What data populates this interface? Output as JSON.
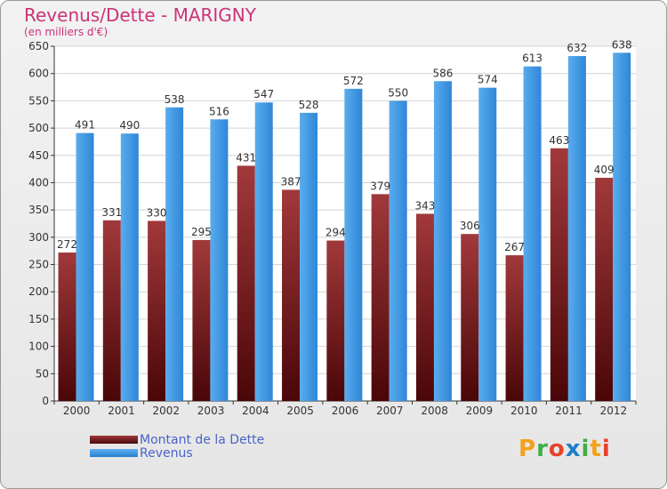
{
  "header": {
    "title": "Revenus/Dette - MARIGNY",
    "subtitle": "(en milliers d'€)"
  },
  "logo": {
    "text": "Proxiti"
  },
  "chart_data": {
    "type": "bar",
    "title": "Revenus/Dette - MARIGNY",
    "subtitle": "(en milliers d'€)",
    "xlabel": "",
    "ylabel": "",
    "ylim": [
      0,
      650
    ],
    "yticks": [
      0,
      50,
      100,
      150,
      200,
      250,
      300,
      350,
      400,
      450,
      500,
      550,
      600,
      650
    ],
    "grid": true,
    "legend_position": "bottom-left",
    "categories": [
      "2000",
      "2001",
      "2002",
      "2003",
      "2004",
      "2005",
      "2006",
      "2007",
      "2008",
      "2009",
      "2010",
      "2011",
      "2012"
    ],
    "series": [
      {
        "name": "Montant de la Dette",
        "color": "#7a1a1c",
        "values": [
          272,
          331,
          330,
          295,
          431,
          387,
          294,
          379,
          343,
          306,
          267,
          463,
          409
        ]
      },
      {
        "name": "Revenus",
        "color": "#3b96df",
        "values": [
          491,
          490,
          538,
          516,
          547,
          528,
          572,
          550,
          586,
          574,
          613,
          632,
          638
        ]
      }
    ]
  }
}
